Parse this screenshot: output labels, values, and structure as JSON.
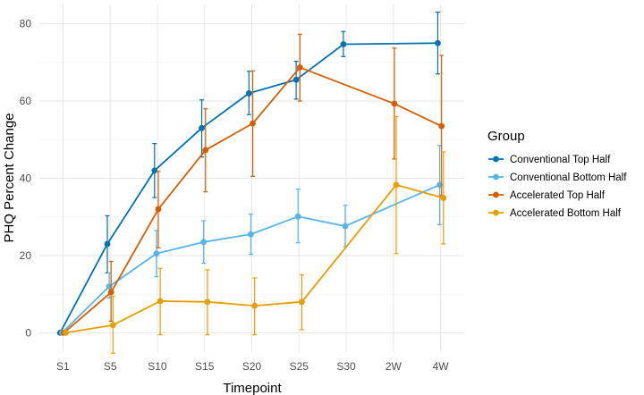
{
  "chart_data": {
    "type": "line",
    "title": "",
    "xlabel": "Timepoint",
    "ylabel": "PHQ Percent Change",
    "categories": [
      "S1",
      "S5",
      "S10",
      "S15",
      "S20",
      "S25",
      "S30",
      "2W",
      "4W"
    ],
    "yticks": [
      0,
      20,
      40,
      60,
      80
    ],
    "ylim": [
      -5,
      85
    ],
    "grid": true,
    "legend": {
      "title": "Group",
      "position": "right"
    },
    "series": [
      {
        "name": "Conventional Top Half",
        "color": "#0072b2",
        "dodge": -0.06,
        "values": [
          0,
          23,
          42,
          53,
          62,
          65.5,
          74.7,
          null,
          75
        ],
        "err_low": [
          null,
          15.5,
          35,
          45.5,
          56.5,
          60.5,
          71.5,
          null,
          67
        ],
        "err_high": [
          null,
          30.3,
          49,
          60.3,
          67.7,
          70.3,
          78,
          null,
          83
        ]
      },
      {
        "name": "Conventional Bottom Half",
        "color": "#56b4e9",
        "dodge": -0.02,
        "values": [
          0,
          12,
          20.5,
          23.5,
          25.5,
          30.1,
          27.6,
          null,
          38.3
        ],
        "err_low": [
          null,
          9,
          14.5,
          18,
          20.3,
          23.3,
          22.3,
          null,
          28
        ],
        "err_high": [
          null,
          15.5,
          26.5,
          29,
          30.7,
          37.2,
          33,
          null,
          48.5
        ]
      },
      {
        "name": "Accelerated Top Half",
        "color": "#d55e00",
        "dodge": 0.02,
        "values": [
          0,
          10.5,
          32,
          47.3,
          54.2,
          68.7,
          null,
          59.3,
          53.5
        ],
        "err_low": [
          null,
          3,
          22,
          36.5,
          40.5,
          60,
          null,
          45,
          35.5
        ],
        "err_high": [
          null,
          18.5,
          41.8,
          58,
          67.8,
          77.3,
          null,
          73.7,
          71.8
        ]
      },
      {
        "name": "Accelerated Bottom Half",
        "color": "#e69f00",
        "dodge": 0.06,
        "values": [
          0,
          2,
          8.2,
          8,
          7,
          8,
          null,
          38.3,
          34.9
        ],
        "err_low": [
          null,
          -5.3,
          -0.5,
          -0.5,
          -0.5,
          0.8,
          null,
          20.5,
          23
        ],
        "err_high": [
          null,
          9.5,
          16.7,
          16.3,
          14.2,
          15,
          null,
          56,
          46.8
        ]
      }
    ]
  }
}
